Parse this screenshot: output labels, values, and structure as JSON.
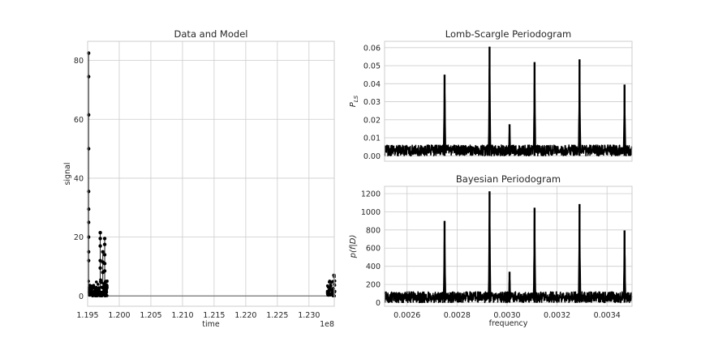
{
  "chart_data": [
    {
      "type": "scatter",
      "title": "Data and Model",
      "xlabel": "time",
      "ylabel": "signal",
      "x_offset_label": "1e8",
      "xlim": [
        1.195,
        1.234
      ],
      "ylim": [
        -3.5,
        86.5
      ],
      "x_ticks": [
        1.195,
        1.2,
        1.205,
        1.21,
        1.215,
        1.22,
        1.225,
        1.23
      ],
      "x_tick_labels": [
        "1.195",
        "1.200",
        "1.205",
        "1.210",
        "1.215",
        "1.220",
        "1.225",
        "1.230"
      ],
      "y_ticks": [
        0,
        20,
        40,
        60,
        80
      ],
      "y_tick_labels": [
        "0",
        "20",
        "40",
        "60",
        "80"
      ],
      "grid": true,
      "model_line": {
        "x": [
          1.195,
          1.234
        ],
        "y": [
          0,
          0
        ],
        "color": "#808080"
      },
      "points_color": "#000000",
      "clusters": [
        {
          "x_range": [
            1.1951,
            1.19535
          ],
          "y_range": [
            0,
            8
          ]
        },
        {
          "x_range": [
            1.19535,
            1.1966
          ],
          "y_range": [
            0,
            6
          ]
        },
        {
          "x_range": [
            1.1966,
            1.1981
          ],
          "y_range": [
            0,
            8
          ]
        },
        {
          "x_range": [
            1.2329,
            1.2341
          ],
          "y_range": [
            0,
            7
          ]
        }
      ],
      "spikes": [
        {
          "x": 1.19515,
          "y": [
            82.5,
            74.5,
            61.5,
            50,
            35.5,
            29.5,
            25,
            20,
            15,
            12
          ]
        },
        {
          "x": 1.197,
          "y": [
            21.5,
            19.5,
            17,
            12,
            9.5
          ]
        },
        {
          "x": 1.1977,
          "y": [
            19.5,
            17.5,
            14,
            11,
            8.5
          ]
        },
        {
          "x": 1.1974,
          "y": [
            15,
            11.5,
            8
          ]
        },
        {
          "x": 1.23395,
          "y": [
            7
          ]
        }
      ]
    },
    {
      "type": "line",
      "title": "Lomb-Scargle Periodogram",
      "xlabel": "",
      "ylabel": "P_LS",
      "xlim": [
        0.00251,
        0.0035
      ],
      "ylim": [
        -0.003,
        0.0635
      ],
      "y_ticks": [
        0,
        0.01,
        0.02,
        0.03,
        0.04,
        0.05,
        0.06
      ],
      "y_tick_labels": [
        "0.00",
        "0.01",
        "0.02",
        "0.03",
        "0.04",
        "0.05",
        "0.06"
      ],
      "grid": true,
      "color": "#000000",
      "noise_band": [
        0,
        0.006
      ],
      "peaks": [
        {
          "f": 0.00275,
          "p": 0.045
        },
        {
          "f": 0.00293,
          "p": 0.0605
        },
        {
          "f": 0.00311,
          "p": 0.052
        },
        {
          "f": 0.00329,
          "p": 0.0535
        },
        {
          "f": 0.00347,
          "p": 0.0395
        },
        {
          "f": 0.00301,
          "p": 0.0175
        }
      ]
    },
    {
      "type": "line",
      "title": "Bayesian Periodogram",
      "xlabel": "frequency",
      "ylabel": "p(f|D)",
      "xlim": [
        0.00251,
        0.0035
      ],
      "ylim": [
        -40,
        1280
      ],
      "x_ticks": [
        0.0026,
        0.0028,
        0.003,
        0.0032,
        0.0034
      ],
      "x_tick_labels": [
        "0.0026",
        "0.0028",
        "0.0030",
        "0.0032",
        "0.0034"
      ],
      "y_ticks": [
        0,
        200,
        400,
        600,
        800,
        1000,
        1200
      ],
      "y_tick_labels": [
        "0",
        "200",
        "400",
        "600",
        "800",
        "1000",
        "1200"
      ],
      "grid": true,
      "color": "#000000",
      "noise_band": [
        0,
        120
      ],
      "peaks": [
        {
          "f": 0.00275,
          "p": 900
        },
        {
          "f": 0.00293,
          "p": 1225
        },
        {
          "f": 0.00311,
          "p": 1045
        },
        {
          "f": 0.00329,
          "p": 1085
        },
        {
          "f": 0.00347,
          "p": 795
        },
        {
          "f": 0.00301,
          "p": 340
        }
      ]
    }
  ]
}
